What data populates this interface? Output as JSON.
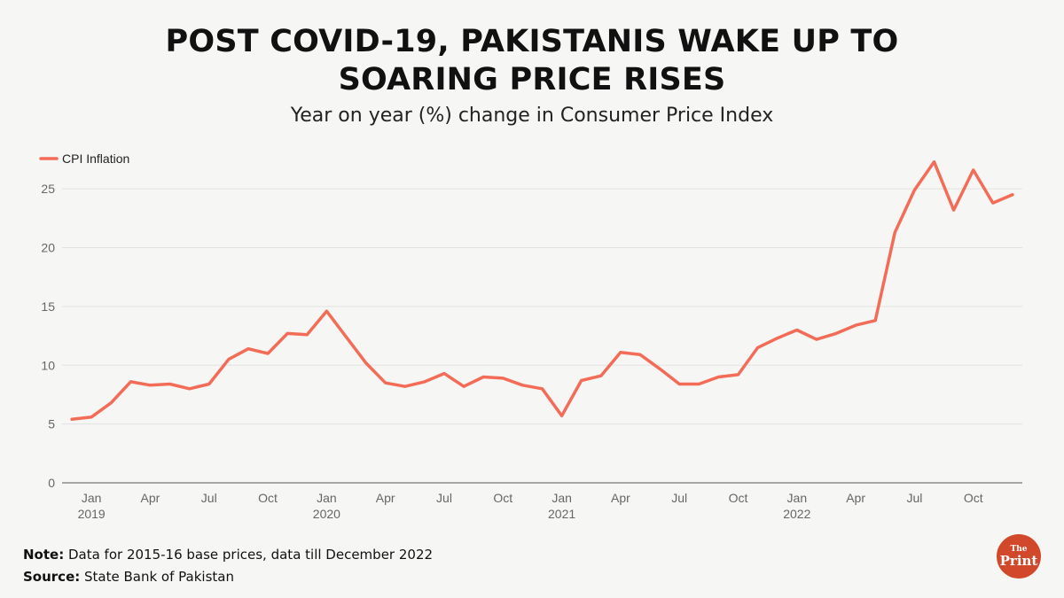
{
  "title_line1": "POST COVID-19, PAKISTANIS WAKE UP TO",
  "title_line2": "SOARING PRICE RISES",
  "subtitle": "Year on year (%) change in Consumer Price Index",
  "note_label": "Note:",
  "note_text": " Data for 2015-16 base prices, data till December 2022",
  "source_label": "Source:",
  "source_text": " State Bank of Pakistan",
  "logo": {
    "the": "The",
    "print": "Print"
  },
  "colors": {
    "line": "#f36c58",
    "grid": "#e2e2e2",
    "logo": "#d2482a"
  },
  "chart_data": {
    "type": "line",
    "title": "POST COVID-19, PAKISTANIS WAKE UP TO SOARING PRICE RISES",
    "subtitle": "Year on year (%) change in Consumer Price Index",
    "legend_position": "top-left",
    "grid": true,
    "ylim": [
      0,
      27.5
    ],
    "yticks": [
      0,
      5,
      10,
      15,
      20,
      25
    ],
    "x_tick_labels": [
      {
        "month": "Jan",
        "year": "2019",
        "date": "2019-01"
      },
      {
        "month": "Apr",
        "year": "",
        "date": "2019-04"
      },
      {
        "month": "Jul",
        "year": "",
        "date": "2019-07"
      },
      {
        "month": "Oct",
        "year": "",
        "date": "2019-10"
      },
      {
        "month": "Jan",
        "year": "2020",
        "date": "2020-01"
      },
      {
        "month": "Apr",
        "year": "",
        "date": "2020-04"
      },
      {
        "month": "Jul",
        "year": "",
        "date": "2020-07"
      },
      {
        "month": "Oct",
        "year": "",
        "date": "2020-10"
      },
      {
        "month": "Jan",
        "year": "2021",
        "date": "2021-01"
      },
      {
        "month": "Apr",
        "year": "",
        "date": "2021-04"
      },
      {
        "month": "Jul",
        "year": "",
        "date": "2021-07"
      },
      {
        "month": "Oct",
        "year": "",
        "date": "2021-10"
      },
      {
        "month": "Jan",
        "year": "2022",
        "date": "2022-01"
      },
      {
        "month": "Apr",
        "year": "",
        "date": "2022-04"
      },
      {
        "month": "Jul",
        "year": "",
        "date": "2022-07"
      },
      {
        "month": "Oct",
        "year": "",
        "date": "2022-10"
      }
    ],
    "series": [
      {
        "name": "CPI Inflation",
        "x": [
          "2018-12",
          "2019-01",
          "2019-02",
          "2019-03",
          "2019-04",
          "2019-05",
          "2019-06",
          "2019-07",
          "2019-08",
          "2019-09",
          "2019-10",
          "2019-11",
          "2019-12",
          "2020-01",
          "2020-02",
          "2020-03",
          "2020-04",
          "2020-05",
          "2020-06",
          "2020-07",
          "2020-08",
          "2020-09",
          "2020-10",
          "2020-11",
          "2020-12",
          "2021-01",
          "2021-02",
          "2021-03",
          "2021-04",
          "2021-05",
          "2021-06",
          "2021-07",
          "2021-08",
          "2021-09",
          "2021-10",
          "2021-11",
          "2021-12",
          "2022-01",
          "2022-02",
          "2022-03",
          "2022-04",
          "2022-05",
          "2022-06",
          "2022-07",
          "2022-08",
          "2022-09",
          "2022-10",
          "2022-11",
          "2022-12"
        ],
        "values": [
          5.4,
          5.6,
          6.8,
          8.6,
          8.3,
          8.4,
          8.0,
          8.4,
          10.5,
          11.4,
          11.0,
          12.7,
          12.6,
          14.6,
          12.4,
          10.2,
          8.5,
          8.2,
          8.6,
          9.3,
          8.2,
          9.0,
          8.9,
          8.3,
          8.0,
          5.7,
          8.7,
          9.1,
          11.1,
          10.9,
          9.7,
          8.4,
          8.4,
          9.0,
          9.2,
          11.5,
          12.3,
          13.0,
          12.2,
          12.7,
          13.4,
          13.8,
          21.3,
          24.9,
          27.3,
          23.2,
          26.6,
          23.8,
          24.5
        ]
      }
    ]
  }
}
